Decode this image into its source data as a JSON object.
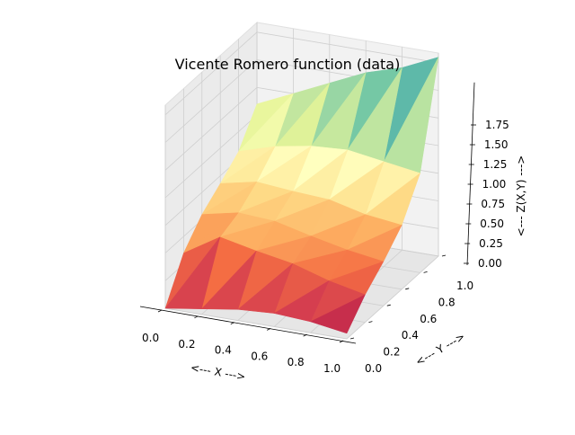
{
  "chart_data": {
    "type": "surface3d",
    "title": "Vicente Romero function (data)",
    "xlabel": "<--- X --->",
    "ylabel": "<--- Y --->",
    "zlabel": "<--- Z(X,Y) --->",
    "xlim": [
      0,
      1
    ],
    "ylim": [
      0,
      1
    ],
    "zlim": [
      0,
      1.75
    ],
    "xticks": [
      0.0,
      0.2,
      0.4,
      0.6,
      0.8,
      1.0
    ],
    "xtick_labels": [
      "0.0",
      "0.2",
      "0.4",
      "0.6",
      "0.8",
      "1.0"
    ],
    "yticks": [
      0.0,
      0.2,
      0.4,
      0.6,
      0.8,
      1.0
    ],
    "ytick_labels": [
      "0.0",
      "0.2",
      "0.4",
      "0.6",
      "0.8",
      "1.0"
    ],
    "zticks": [
      0.0,
      0.25,
      0.5,
      0.75,
      1.0,
      1.25,
      1.5,
      1.75
    ],
    "ztick_labels": [
      "0.00",
      "0.25",
      "0.50",
      "0.75",
      "1.00",
      "1.25",
      "1.50",
      "1.75"
    ],
    "grid": true,
    "colormap": "Spectral",
    "x_samples": [
      0.0,
      0.2,
      0.4,
      0.6,
      0.8,
      1.0
    ],
    "y_samples": [
      0.0,
      0.2,
      0.4,
      0.6,
      0.8,
      1.0
    ],
    "z": [
      [
        0.0,
        0.35,
        0.55,
        0.68,
        0.82,
        1.1
      ],
      [
        0.05,
        0.55,
        0.62,
        0.75,
        0.92,
        1.25
      ],
      [
        0.1,
        0.48,
        0.6,
        0.72,
        0.98,
        1.4
      ],
      [
        0.12,
        0.42,
        0.52,
        0.7,
        1.0,
        1.55
      ],
      [
        0.1,
        0.32,
        0.45,
        0.62,
        0.95,
        1.65
      ],
      [
        0.05,
        0.25,
        0.4,
        0.58,
        0.9,
        1.8
      ]
    ]
  }
}
